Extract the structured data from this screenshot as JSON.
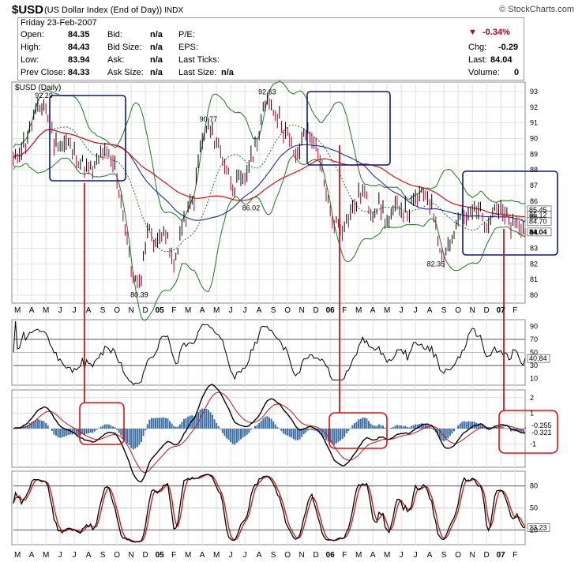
{
  "header": {
    "symbol": "$USD",
    "description": "(US Dollar Index (End of Day))",
    "exchange": "INDX",
    "brand": "© StockCharts.com",
    "date": "Friday  23-Feb-2007"
  },
  "quote": {
    "open_label": "Open:",
    "open": "84.35",
    "high_label": "High:",
    "high": "84.43",
    "low_label": "Low:",
    "low": "83.94",
    "prev_label": "Prev Close:",
    "prev": "84.33",
    "bid_label": "Bid:",
    "bid": "n/a",
    "bidsize_label": "Bid Size:",
    "bidsize": "n/a",
    "ask_label": "Ask:",
    "ask": "n/a",
    "asksize_label": "Ask Size:",
    "asksize": "n/a",
    "pe_label": "P/E:",
    "eps_label": "EPS:",
    "lastticks_label": "Last Ticks:",
    "lastsize_label": "Last Size:",
    "lastsize": "n/a",
    "pct": "-0.34%",
    "chg_label": "Chg:",
    "chg": "-0.29",
    "last_label": "Last:",
    "last": "84.04",
    "vol_label": "Volume:",
    "vol": "0"
  },
  "chart_data": [
    {
      "type": "line",
      "panel": "price",
      "title": "$USD (Daily)",
      "ylim": [
        79.5,
        93.6
      ],
      "yticks": [
        "80",
        "81",
        "82",
        "83",
        "84",
        "85",
        "86",
        "87",
        "88",
        "89",
        "90",
        "91",
        "92",
        "93"
      ],
      "x_labels": [
        "M",
        "A",
        "M",
        "J",
        "J",
        "A",
        "S",
        "O",
        "N",
        "D",
        "05",
        "F",
        "M",
        "A",
        "M",
        "J",
        "J",
        "A",
        "S",
        "O",
        "N",
        "D",
        "06",
        "F",
        "M",
        "A",
        "M",
        "J",
        "J",
        "A",
        "S",
        "O",
        "N",
        "D",
        "07",
        "F"
      ],
      "anchors": {
        "x": [
          0,
          6,
          10,
          15,
          20,
          27,
          35,
          39,
          44,
          50,
          55,
          58,
          62,
          66,
          71,
          74,
          79,
          83,
          86,
          89,
          92,
          96,
          100,
          104,
          108,
          113,
          117,
          121,
          125,
          130,
          134,
          137,
          140,
          143,
          147,
          152,
          157,
          162,
          167,
          172,
          176,
          180,
          184,
          190,
          194,
          199,
          204,
          208,
          211,
          216,
          220,
          223,
          226,
          229,
          233,
          237,
          241,
          245,
          249,
          252
        ],
        "price": [
          88.6,
          89.8,
          91.3,
          92.3,
          89.8,
          89.6,
          88.3,
          87.8,
          89.2,
          88.3,
          84.5,
          81.5,
          80.4,
          84.3,
          83.2,
          84.5,
          81.8,
          84.4,
          85.4,
          86.2,
          89.4,
          90.8,
          89.8,
          88.5,
          86.9,
          87.3,
          88.6,
          90.4,
          92.6,
          91.4,
          90.4,
          89.5,
          88.6,
          90.4,
          90.2,
          87.8,
          84.7,
          84.4,
          85.5,
          86.7,
          85.3,
          85.9,
          84.6,
          85.8,
          85.2,
          86.2,
          86.5,
          84.8,
          82.4,
          83.6,
          85.0,
          84.9,
          85.4,
          85.6,
          84.6,
          85.7,
          85.2,
          84.4,
          84.3,
          84.04
        ]
      },
      "annotations": [
        "92.29",
        "80.39",
        "90.77",
        "86.02",
        "92.63",
        "82.35"
      ],
      "last_labels": [
        "85.45",
        "85.12",
        "84.70",
        "84.04"
      ]
    },
    {
      "type": "line",
      "panel": "RSI",
      "ylim": [
        0,
        100
      ],
      "yticks": [
        "10",
        "30",
        "50",
        "70",
        "90"
      ],
      "last": "40.84"
    },
    {
      "type": "line",
      "panel": "MACD",
      "ylim": [
        -2.5,
        2.5
      ],
      "yticks": [
        "-1",
        "1",
        "2"
      ],
      "last_labels": [
        "-0.255",
        "-0.321"
      ]
    },
    {
      "type": "line",
      "panel": "Stochastic",
      "ylim": [
        0,
        100
      ],
      "yticks": [
        "20",
        "50",
        "80"
      ],
      "last": "23.23"
    }
  ],
  "colors": {
    "price": "#000000",
    "bollinger": "#1a7a1a",
    "ma_short": "#1a2ea0",
    "ma_long": "#dd1111",
    "highlight_box_blue": "#0a1a70",
    "highlight_box_red": "#dd1111",
    "macd_hist": "#3a6ea5",
    "change_negative": "#b2002c"
  }
}
